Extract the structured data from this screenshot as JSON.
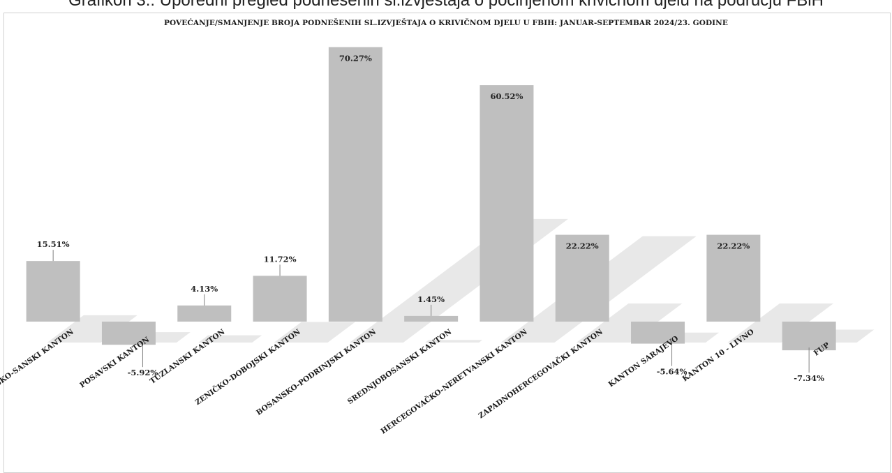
{
  "caption": "Grafikon 3.: Uporedni pregled podnesenih sl.izvještaja o počinjenom krivičnom djelu na području FBiH",
  "chart_data": {
    "type": "bar",
    "title": "POVEĆANJE/SMANJENJE BROJA PODNEŠENIH SL.IZVJEŠTAJA O KRIVIČNOM DJELU U FBIH: JANUAR-SEPTEMBAR 2024/23. GODINE",
    "xlabel": "",
    "ylabel": "",
    "categories": [
      "UNSKO-SANSKI KANTON",
      "POSAVSKI KANTON",
      "TUZLANSKI KANTON",
      "ZENIČKO-DOBOJSKI KANTON",
      "BOSANSKO-PODRINJSKI KANTON",
      "SREDNJOBOSANSKI KANTON",
      "HERCEGOVAČKO-NERETVANSKI KANTON",
      "ZAPADNOHERCEGOVAČKI KANTON",
      "KANTON SARAJEVO",
      "KANTON 10 - LIVNO",
      "FUP"
    ],
    "values": [
      15.51,
      -5.92,
      4.13,
      11.72,
      70.27,
      1.45,
      60.52,
      22.22,
      -5.64,
      22.22,
      -7.34
    ],
    "labels": [
      "15.51%",
      "-5.92%",
      "4.13%",
      "11.72%",
      "70.27%",
      "1.45%",
      "60.52%",
      "22.22%",
      "-5.64%",
      "22.22%",
      "-7.34%"
    ],
    "ylim": [
      -10,
      72
    ],
    "grid": false,
    "legend": "none",
    "bar_color": "#bfbfbf",
    "shadow_color": "#d6d6d6"
  }
}
